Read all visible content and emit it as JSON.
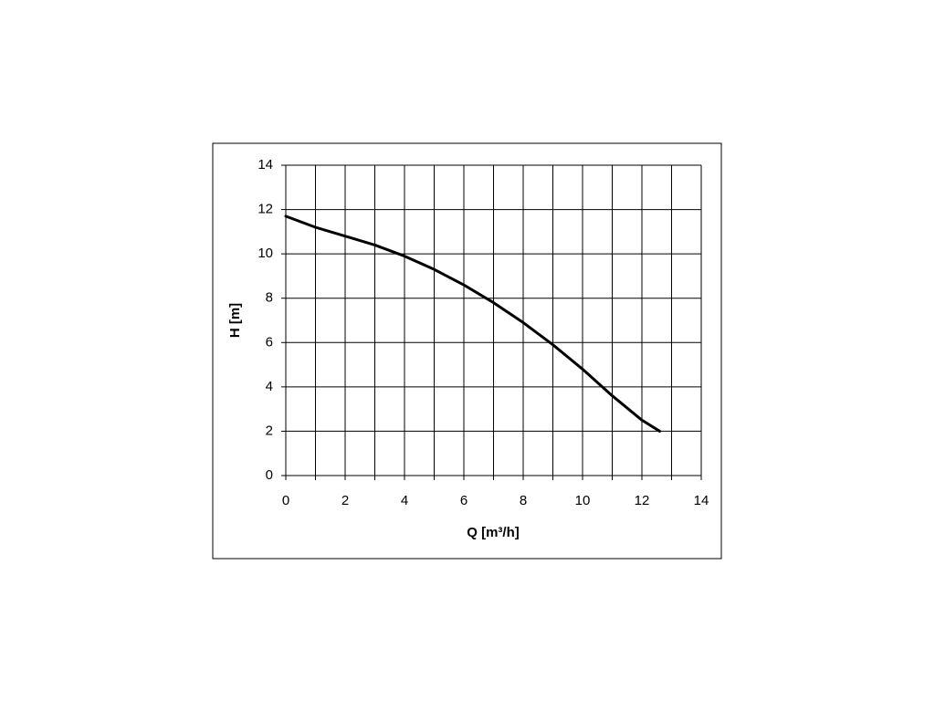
{
  "chart_data": {
    "type": "line",
    "xlabel": "Q [m³/h]",
    "ylabel": "H [m]",
    "x": [
      0,
      1,
      2,
      3,
      4,
      5,
      6,
      7,
      8,
      9,
      10,
      11,
      12,
      12.6
    ],
    "series": [
      {
        "color": "#000000",
        "values": [
          11.7,
          11.2,
          10.8,
          10.4,
          9.9,
          9.3,
          8.6,
          7.8,
          6.9,
          5.9,
          4.8,
          3.6,
          2.5,
          2.0
        ]
      }
    ],
    "xlim": [
      0,
      14
    ],
    "ylim": [
      0,
      14
    ],
    "xticks": [
      0,
      2,
      4,
      6,
      8,
      10,
      12,
      14
    ],
    "xminorticks": [
      1,
      3,
      5,
      7,
      9,
      11,
      13
    ],
    "yticks": [
      0,
      2,
      4,
      6,
      8,
      10,
      12,
      14
    ],
    "grid": true
  }
}
